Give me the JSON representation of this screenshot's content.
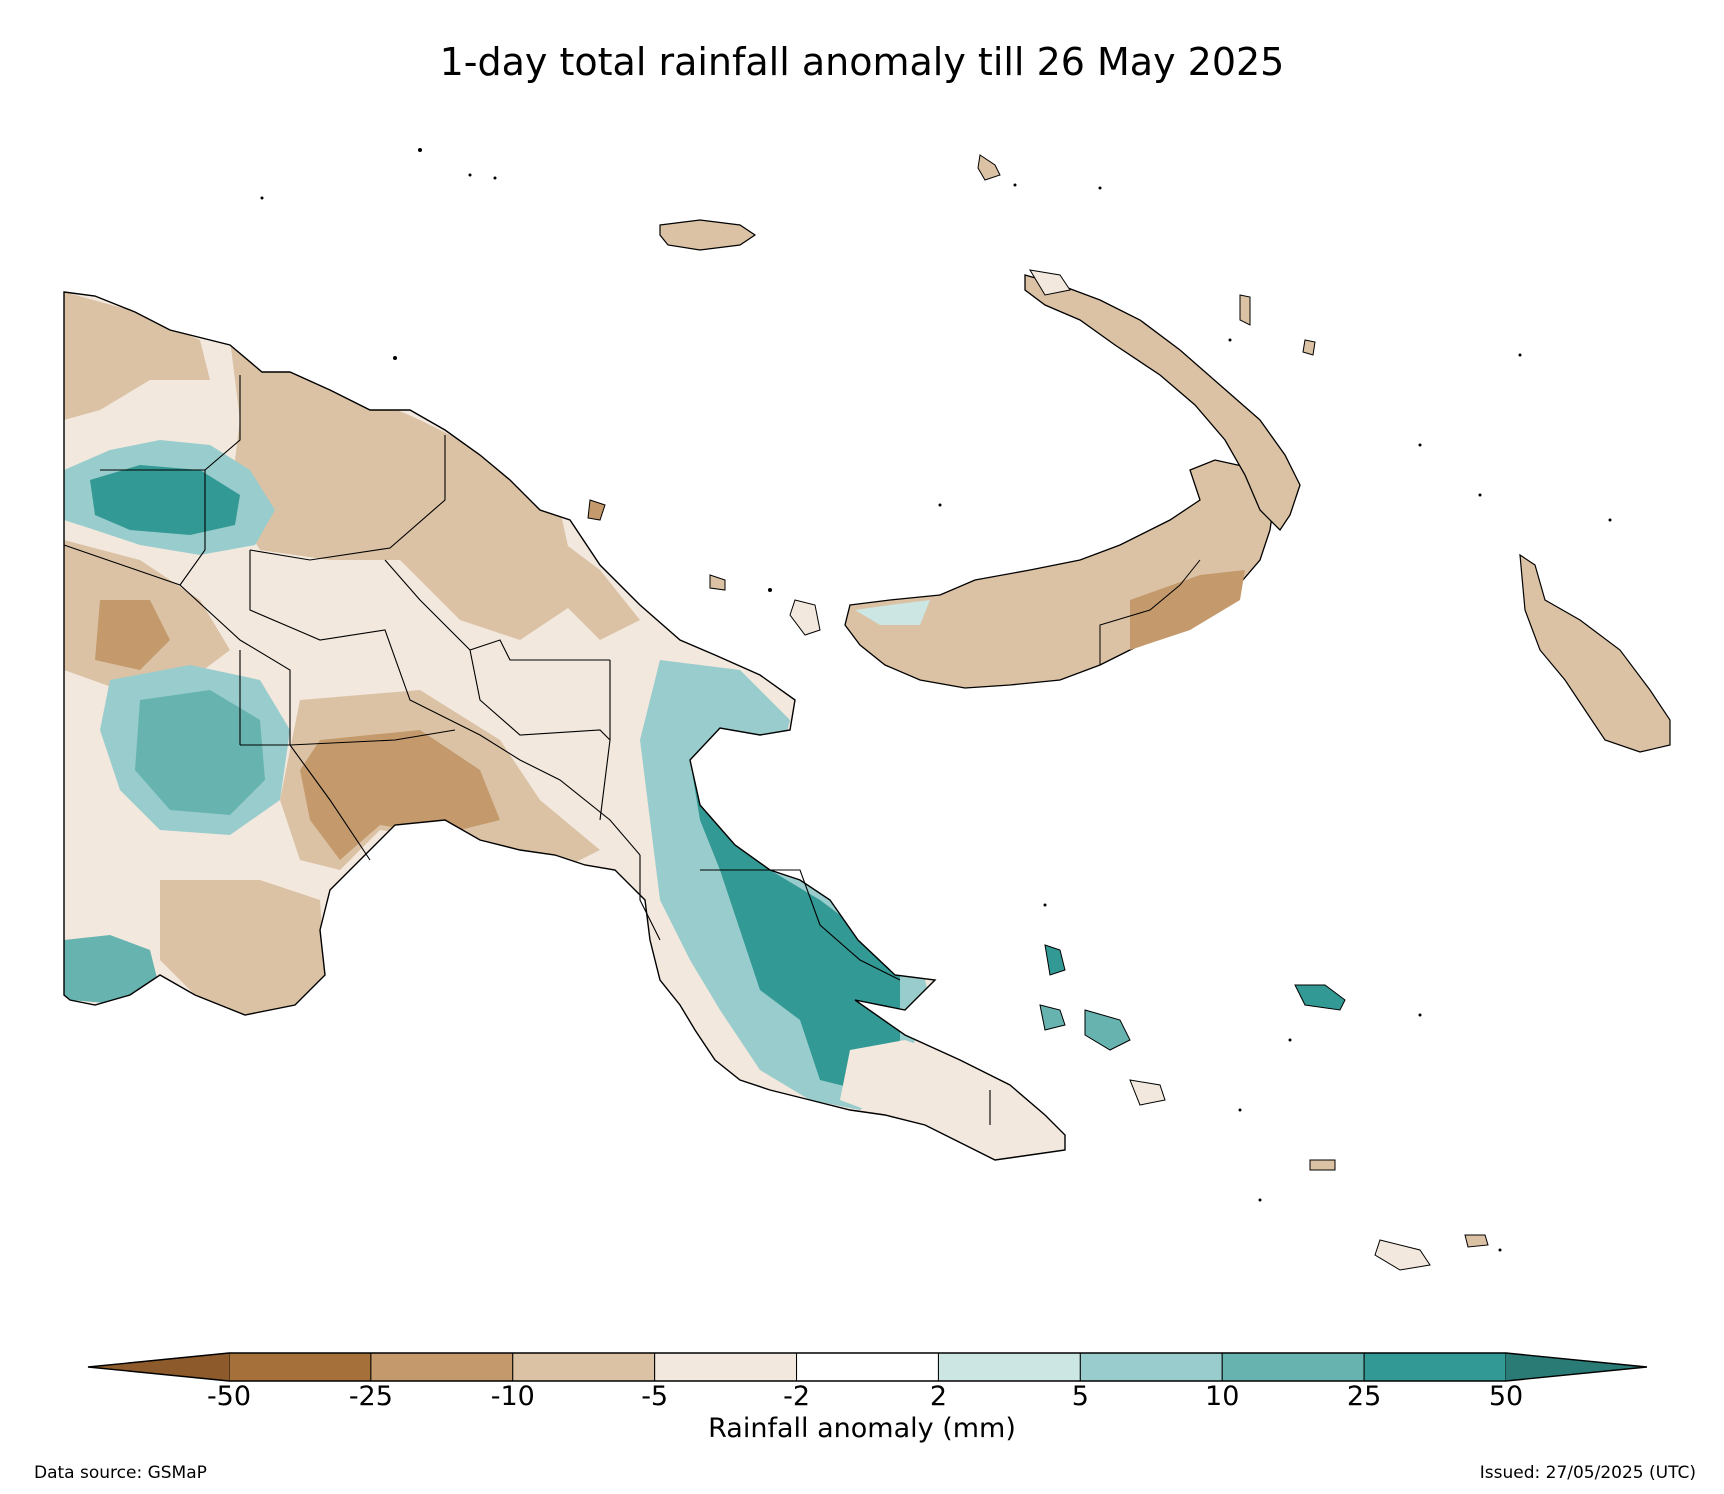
{
  "title": "1-day total rainfall anomaly till 26 May 2025",
  "colorbar": {
    "label": "Rainfall anomaly (mm)",
    "ticks": [
      "-50",
      "-25",
      "-10",
      "-5",
      "-2",
      "2",
      "5",
      "10",
      "25",
      "50"
    ],
    "colors": [
      "#a6703a",
      "#c49a6c",
      "#dbc2a5",
      "#f2e8de",
      "#ffffff",
      "#cce6e4",
      "#99cccc",
      "#66b3b0",
      "#339994"
    ],
    "extend_low_color": "#8c5a2b",
    "extend_high_color": "#2a7a76"
  },
  "footer": {
    "data_source": "Data source: GSMaP",
    "issued": "Issued: 27/05/2025 (UTC)"
  }
}
